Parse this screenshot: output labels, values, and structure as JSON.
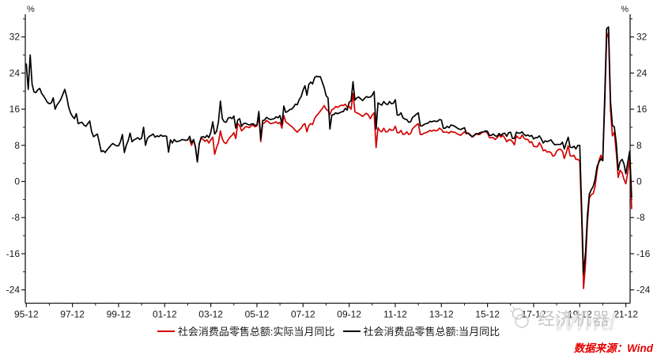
{
  "chart_data": {
    "type": "line",
    "title": "",
    "unit_label": "%",
    "grid": false,
    "legend_position": "bottom",
    "x_start": "1995-12",
    "x_end": "2022-03",
    "x_frequency": "monthly",
    "x_tick_labels": [
      "95-12",
      "97-12",
      "99-12",
      "01-12",
      "03-12",
      "05-12",
      "07-12",
      "09-12",
      "11-12",
      "13-12",
      "15-12",
      "17-12",
      "19-12",
      "21-12"
    ],
    "y_ticks": [
      -24,
      -16,
      -8,
      0,
      8,
      16,
      24,
      32
    ],
    "y_minor_ticks": [
      -20,
      -12,
      -4,
      4,
      12,
      20,
      28,
      36
    ],
    "ylim": [
      -27.5,
      36.8
    ],
    "series": [
      {
        "name": "社会消费品零售总额:实际当月同比",
        "color": "#d40000",
        "start": "2003-01",
        "start_index": 85,
        "values": [
          9.2,
          8.0,
          9.2,
          7.6,
          4.4,
          8.4,
          9.6,
          9.3,
          8.9,
          9.2,
          8.5,
          9.2,
          9.8,
          6.0,
          7.5,
          8.6,
          11.2,
          9.4,
          8.6,
          8.4,
          9.2,
          9.8,
          10.2,
          10.8,
          9.5,
          12.8,
          12.4,
          11.2,
          11.6,
          12.1,
          12.1,
          11.9,
          12.3,
          12.5,
          12.1,
          12.3,
          14.5,
          8.8,
          12.8,
          13.0,
          13.5,
          13.2,
          12.8,
          12.9,
          13.0,
          13.2,
          12.8,
          13.1,
          11.8,
          14.6,
          13.2,
          12.9,
          12.5,
          12.2,
          11.8,
          11.3,
          10.9,
          11.4,
          11.8,
          12.5,
          12.8,
          11.0,
          12.4,
          12.8,
          12.6,
          13.9,
          14.6,
          15.0,
          15.6,
          16.1,
          16.8,
          16.0,
          15.7,
          14.8,
          15.9,
          16.1,
          16.6,
          16.4,
          16.7,
          16.9,
          16.8,
          17.1,
          16.4,
          16.6,
          16.0,
          19.5,
          15.4,
          15.2,
          15.0,
          14.7,
          14.4,
          14.8,
          15.1,
          14.7,
          13.9,
          14.7,
          15.2,
          7.5,
          11.9,
          11.2,
          11.0,
          11.8,
          11.0,
          11.0,
          11.6,
          11.3,
          11.4,
          12.2,
          10.8,
          10.8,
          11.3,
          10.4,
          10.5,
          11.0,
          10.4,
          10.6,
          11.7,
          12.1,
          12.5,
          12.8,
          10.4,
          10.4,
          10.7,
          10.8,
          11.0,
          11.3,
          11.1,
          11.4,
          11.2,
          11.3,
          11.8,
          11.5,
          10.9,
          10.9,
          10.9,
          10.7,
          11.1,
          10.9,
          10.9,
          10.6,
          10.4,
          10.2,
          10.6,
          11.0,
          10.5,
          10.7,
          10.4,
          9.8,
          10.2,
          10.5,
          10.4,
          10.4,
          10.8,
          11.0,
          11.0,
          10.7,
          9.7,
          9.7,
          9.7,
          9.3,
          9.7,
          10.3,
          9.8,
          10.2,
          9.6,
          8.8,
          9.2,
          9.2,
          8.8,
          8.1,
          10.1,
          9.7,
          9.5,
          10.3,
          9.6,
          9.3,
          9.3,
          8.6,
          8.8,
          7.8,
          7.7,
          7.7,
          8.6,
          7.9,
          6.8,
          7.0,
          6.5,
          6.6,
          6.4,
          5.6,
          5.8,
          6.7,
          7.1,
          7.1,
          6.7,
          5.1,
          6.4,
          7.9,
          5.7,
          5.6,
          5.8,
          4.9,
          4.9,
          4.5,
          -8.0,
          -23.7,
          -18.1,
          -9.1,
          -3.7,
          -2.9,
          -2.7,
          -1.1,
          2.4,
          4.6,
          5.8,
          4.6,
          17.0,
          31.7,
          33.0,
          15.8,
          10.1,
          10.9,
          6.4,
          0.9,
          2.5,
          1.9,
          0.5,
          -0.5,
          2.0,
          4.9,
          -6.0
        ]
      },
      {
        "name": "社会消费品零售总额:当月同比",
        "color": "#000000",
        "start": "1995-12",
        "start_index": 0,
        "values": [
          26.0,
          20.4,
          28.0,
          21.5,
          19.8,
          19.7,
          20.3,
          20.6,
          19.5,
          18.9,
          18.2,
          17.5,
          17.2,
          17.4,
          18.5,
          16.0,
          17.0,
          17.5,
          18.2,
          19.3,
          20.4,
          18.8,
          16.5,
          15.2,
          14.4,
          13.9,
          15.0,
          12.8,
          13.0,
          13.1,
          12.5,
          12.2,
          12.8,
          13.4,
          11.0,
          9.9,
          10.2,
          10.5,
          8.5,
          6.6,
          6.8,
          6.4,
          7.0,
          7.5,
          8.0,
          8.4,
          8.1,
          7.9,
          7.9,
          8.8,
          10.4,
          6.4,
          8.0,
          9.0,
          10.7,
          8.8,
          9.2,
          9.4,
          9.7,
          9.3,
          9.6,
          12.0,
          8.0,
          9.5,
          10.0,
          10.2,
          10.5,
          9.8,
          10.1,
          9.9,
          10.3,
          10.0,
          10.1,
          10.0,
          6.5,
          9.2,
          8.5,
          9.3,
          8.8,
          8.9,
          9.0,
          9.3,
          9.2,
          9.1,
          9.2,
          10.0,
          8.5,
          9.3,
          7.7,
          4.3,
          8.3,
          9.8,
          9.9,
          9.7,
          10.2,
          9.7,
          10.9,
          13.2,
          10.5,
          11.1,
          13.2,
          17.8,
          13.9,
          13.2,
          13.1,
          14.0,
          14.2,
          13.9,
          14.5,
          11.8,
          13.6,
          13.9,
          12.2,
          12.8,
          12.9,
          12.7,
          12.5,
          12.7,
          12.8,
          12.4,
          12.5,
          15.5,
          9.4,
          13.5,
          13.6,
          14.2,
          13.9,
          13.7,
          13.8,
          13.9,
          14.3,
          14.1,
          14.6,
          12.7,
          16.7,
          15.3,
          15.5,
          15.9,
          16.0,
          16.4,
          17.1,
          17.0,
          18.1,
          18.8,
          20.2,
          21.2,
          19.1,
          21.5,
          22.0,
          21.6,
          23.0,
          23.3,
          23.2,
          23.2,
          22.0,
          20.8,
          19.0,
          18.5,
          11.6,
          14.7,
          14.8,
          15.2,
          15.0,
          15.2,
          15.4,
          15.5,
          16.2,
          15.8,
          17.5,
          17.9,
          22.1,
          18.0,
          18.5,
          18.7,
          18.3,
          17.9,
          18.4,
          18.8,
          18.6,
          18.7,
          19.1,
          19.9,
          11.6,
          17.4,
          17.1,
          16.9,
          17.7,
          17.2,
          17.0,
          17.7,
          17.2,
          17.3,
          18.1,
          14.7,
          14.7,
          15.2,
          14.1,
          13.8,
          13.7,
          13.1,
          13.2,
          14.2,
          14.5,
          14.9,
          15.2,
          12.3,
          12.3,
          12.6,
          12.8,
          12.9,
          13.3,
          13.2,
          13.4,
          13.3,
          13.3,
          13.7,
          13.6,
          11.8,
          11.8,
          12.2,
          11.9,
          12.5,
          12.4,
          12.2,
          11.9,
          11.6,
          11.5,
          11.7,
          11.9,
          10.7,
          10.7,
          10.2,
          10.0,
          10.1,
          10.6,
          10.5,
          10.8,
          10.9,
          11.0,
          11.2,
          11.1,
          10.2,
          10.2,
          10.5,
          10.1,
          10.0,
          10.6,
          10.2,
          10.6,
          10.7,
          10.0,
          10.8,
          10.9,
          9.5,
          9.5,
          10.9,
          10.7,
          10.7,
          11.0,
          10.4,
          10.1,
          10.3,
          10.0,
          10.2,
          9.4,
          9.7,
          9.7,
          10.1,
          9.4,
          8.5,
          9.0,
          8.8,
          9.0,
          9.2,
          8.6,
          8.1,
          8.2,
          8.2,
          8.2,
          8.7,
          7.2,
          8.6,
          9.8,
          7.6,
          7.5,
          7.8,
          7.2,
          8.0,
          8.0,
          -6.0,
          -20.5,
          -15.8,
          -7.5,
          -2.8,
          -1.8,
          -1.1,
          0.5,
          3.3,
          4.3,
          5.0,
          4.6,
          19.0,
          33.8,
          34.2,
          17.7,
          12.4,
          12.1,
          8.5,
          2.5,
          4.4,
          4.9,
          3.9,
          1.7,
          4.2,
          6.7,
          -3.5
        ]
      }
    ]
  },
  "legend": {
    "real_label": "社会消费品零售总额:实际当月同比",
    "nominal_label": "社会消费品零售总额:当月同比"
  },
  "axis": {
    "left_unit": "%",
    "right_unit": "%"
  },
  "watermark": {
    "brand": "经济机器",
    "background_text": "Wind"
  },
  "source": {
    "text": "数据来源：Wind"
  },
  "colors": {
    "real_series": "#d40000",
    "nominal_series": "#000000",
    "axis": "#1a1a1a",
    "source_text": "#e60000",
    "watermark_gray": "#c6c6c6"
  }
}
